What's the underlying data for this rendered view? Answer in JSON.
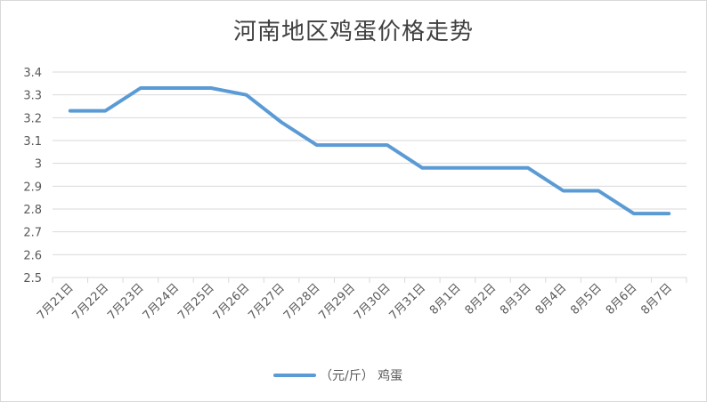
{
  "chart_data": {
    "type": "line",
    "title": "河南地区鸡蛋价格走势",
    "xlabel": "",
    "ylabel": "",
    "categories": [
      "7月21日",
      "7月22日",
      "7月23日",
      "7月24日",
      "7月25日",
      "7月26日",
      "7月27日",
      "7月28日",
      "7月29日",
      "7月30日",
      "7月31日",
      "8月1日",
      "8月2日",
      "8月3日",
      "8月4日",
      "8月5日",
      "8月6日",
      "8月7日"
    ],
    "series": [
      {
        "name": "（元/斤） 鸡蛋",
        "values": [
          3.23,
          3.23,
          3.33,
          3.33,
          3.33,
          3.3,
          3.18,
          3.08,
          3.08,
          3.08,
          2.98,
          2.98,
          2.98,
          2.98,
          2.88,
          2.88,
          2.78,
          2.78
        ]
      }
    ],
    "ylim": [
      2.5,
      3.4
    ],
    "yticks": [
      2.5,
      2.6,
      2.7,
      2.8,
      2.9,
      3,
      3.1,
      3.2,
      3.3,
      3.4
    ],
    "grid": "horizontal",
    "legend_position": "bottom",
    "line_color": "#5b9bd5"
  }
}
